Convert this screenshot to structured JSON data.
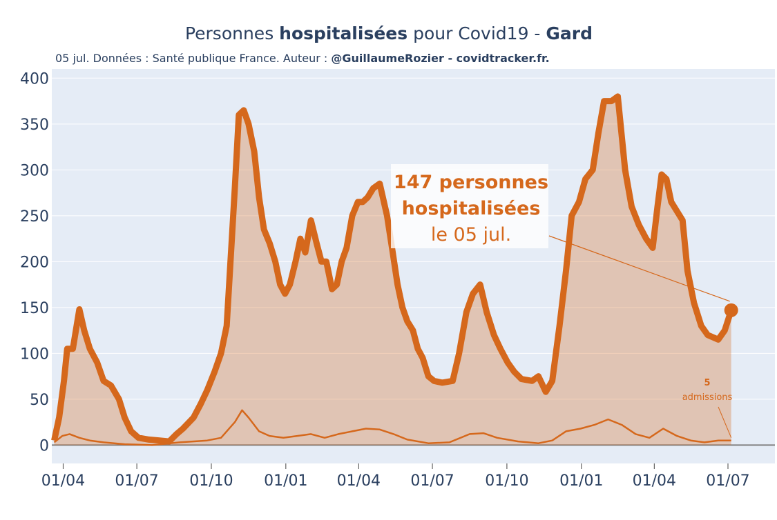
{
  "chart_data": {
    "type": "line",
    "title": [
      "Personnes ",
      "hospitalisées",
      " pour Covid19 - ",
      "Gard"
    ],
    "title_bold": [
      false,
      true,
      false,
      true
    ],
    "subtitle": [
      "05 jul. Données : Santé publique France. Auteur : ",
      "@GuillaumeRozier - covidtracker.fr."
    ],
    "subtitle_bold": [
      false,
      true
    ],
    "xlim": [
      -14,
      879
    ],
    "ylim": [
      -20,
      410
    ],
    "xticks": [
      {
        "value": 0,
        "label": "01/04"
      },
      {
        "value": 91,
        "label": "01/07"
      },
      {
        "value": 183,
        "label": "01/10"
      },
      {
        "value": 275,
        "label": "01/01"
      },
      {
        "value": 365,
        "label": "01/04"
      },
      {
        "value": 456,
        "label": "01/07"
      },
      {
        "value": 548,
        "label": "01/10"
      },
      {
        "value": 640,
        "label": "01/01"
      },
      {
        "value": 730,
        "label": "01/04"
      },
      {
        "value": 821,
        "label": "01/07"
      }
    ],
    "yticks": [
      0,
      50,
      100,
      150,
      200,
      250,
      300,
      350,
      400
    ],
    "grid": true,
    "series": [
      {
        "name": "hospitalisations",
        "color": "#d5681c",
        "fill": true,
        "x": [
          -11,
          -5,
          1,
          5,
          12,
          20,
          26,
          33,
          42,
          50,
          59,
          69,
          76,
          84,
          93,
          106,
          119,
          131,
          140,
          148,
          161,
          170,
          178,
          187,
          195,
          202,
          208,
          212,
          217,
          223,
          229,
          236,
          242,
          248,
          255,
          262,
          268,
          274,
          280,
          287,
          293,
          299,
          306,
          313,
          319,
          325,
          332,
          338,
          344,
          350,
          357,
          364,
          370,
          376,
          383,
          391,
          400,
          407,
          413,
          419,
          425,
          432,
          438,
          444,
          451,
          458,
          468,
          481,
          489,
          498,
          506,
          515,
          523,
          532,
          540,
          549,
          557,
          566,
          579,
          587,
          596,
          604,
          613,
          621,
          628,
          637,
          645,
          654,
          661,
          668,
          677,
          685,
          694,
          702,
          711,
          720,
          728,
          734,
          739,
          745,
          751,
          758,
          765,
          771,
          779,
          788,
          796,
          809,
          817,
          825
        ],
        "values": [
          5,
          30,
          70,
          105,
          105,
          148,
          125,
          105,
          90,
          70,
          65,
          50,
          30,
          15,
          8,
          6,
          5,
          4,
          12,
          18,
          30,
          45,
          60,
          80,
          100,
          130,
          220,
          280,
          360,
          365,
          350,
          320,
          270,
          235,
          220,
          200,
          175,
          165,
          175,
          200,
          225,
          210,
          245,
          220,
          200,
          200,
          170,
          175,
          200,
          215,
          250,
          265,
          265,
          270,
          280,
          285,
          250,
          210,
          175,
          150,
          135,
          125,
          105,
          95,
          75,
          70,
          68,
          70,
          100,
          145,
          165,
          175,
          145,
          120,
          105,
          90,
          80,
          72,
          70,
          75,
          58,
          70,
          130,
          190,
          250,
          265,
          290,
          300,
          340,
          375,
          375,
          380,
          300,
          260,
          240,
          225,
          215,
          260,
          295,
          290,
          265,
          255,
          245,
          190,
          155,
          130,
          120,
          115,
          125,
          147
        ]
      },
      {
        "name": "admissions",
        "color": "#d5681c",
        "fill": false,
        "x": [
          -11,
          -1,
          8,
          20,
          33,
          50,
          76,
          110,
          144,
          178,
          195,
          212,
          221,
          229,
          242,
          255,
          272,
          289,
          306,
          323,
          340,
          357,
          374,
          391,
          408,
          425,
          451,
          477,
          502,
          519,
          536,
          562,
          587,
          604,
          621,
          639,
          656,
          673,
          690,
          707,
          724,
          741,
          758,
          775,
          792,
          809,
          825
        ],
        "values": [
          3,
          10,
          12,
          8,
          5,
          3,
          1,
          0,
          3,
          5,
          8,
          25,
          38,
          30,
          15,
          10,
          8,
          10,
          12,
          8,
          12,
          15,
          18,
          17,
          12,
          6,
          2,
          3,
          12,
          13,
          8,
          4,
          2,
          5,
          15,
          18,
          22,
          28,
          22,
          12,
          8,
          18,
          10,
          5,
          3,
          5,
          5
        ]
      }
    ],
    "annotations": [
      {
        "lines": [
          "147 personnes",
          "hospitalisées",
          "le 05 jul."
        ],
        "series": 0
      },
      {
        "lines": [
          "5",
          "admissions"
        ],
        "series": 1
      }
    ]
  }
}
